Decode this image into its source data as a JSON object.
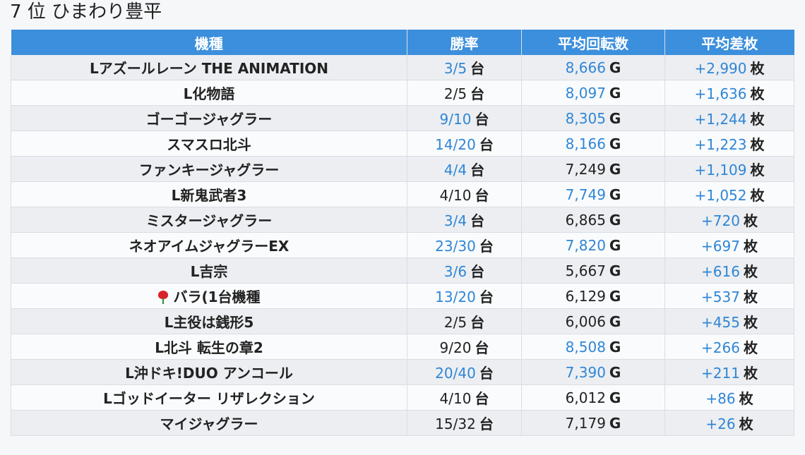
{
  "title": "7 位 ひまわり豊平",
  "headers": {
    "model": "機種",
    "win_rate": "勝率",
    "avg_spins": "平均回転数",
    "avg_diff": "平均差枚"
  },
  "units": {
    "dai": "台",
    "g": "G",
    "mai": "枚"
  },
  "colors": {
    "header_bg": "#3c8fdc",
    "highlight": "#2f86d6"
  },
  "rows": [
    {
      "model": "Lアズールレーン THE ANIMATION",
      "win": "3/5",
      "win_hl": true,
      "spins": "8,666",
      "spins_hl": true,
      "diff": "+2,990"
    },
    {
      "model": "L化物語",
      "win": "2/5",
      "win_hl": false,
      "spins": "8,097",
      "spins_hl": true,
      "diff": "+1,636"
    },
    {
      "model": "ゴーゴージャグラー",
      "win": "9/10",
      "win_hl": true,
      "spins": "8,305",
      "spins_hl": true,
      "diff": "+1,244"
    },
    {
      "model": "スマスロ北斗",
      "win": "14/20",
      "win_hl": true,
      "spins": "8,166",
      "spins_hl": true,
      "diff": "+1,223"
    },
    {
      "model": "ファンキージャグラー",
      "win": "4/4",
      "win_hl": true,
      "spins": "7,249",
      "spins_hl": false,
      "diff": "+1,109"
    },
    {
      "model": "L新鬼武者3",
      "win": "4/10",
      "win_hl": false,
      "spins": "7,749",
      "spins_hl": true,
      "diff": "+1,052"
    },
    {
      "model": "ミスタージャグラー",
      "win": "3/4",
      "win_hl": true,
      "spins": "6,865",
      "spins_hl": false,
      "diff": "+720"
    },
    {
      "model": "ネオアイムジャグラーEX",
      "win": "23/30",
      "win_hl": true,
      "spins": "7,820",
      "spins_hl": true,
      "diff": "+697"
    },
    {
      "model": "L吉宗",
      "win": "3/6",
      "win_hl": true,
      "spins": "5,667",
      "spins_hl": false,
      "diff": "+616"
    },
    {
      "model": "バラ(1台機種",
      "rose": true,
      "win": "13/20",
      "win_hl": true,
      "spins": "6,129",
      "spins_hl": false,
      "diff": "+537"
    },
    {
      "model": "L主役は銭形5",
      "win": "2/5",
      "win_hl": false,
      "spins": "6,006",
      "spins_hl": false,
      "diff": "+455"
    },
    {
      "model": "L北斗 転生の章2",
      "win": "9/20",
      "win_hl": false,
      "spins": "8,508",
      "spins_hl": true,
      "diff": "+266"
    },
    {
      "model": "L沖ドキ!DUO アンコール",
      "win": "20/40",
      "win_hl": true,
      "spins": "7,390",
      "spins_hl": true,
      "diff": "+211"
    },
    {
      "model": "Lゴッドイーター リザレクション",
      "win": "4/10",
      "win_hl": false,
      "spins": "6,012",
      "spins_hl": false,
      "diff": "+86"
    },
    {
      "model": "マイジャグラー",
      "win": "15/32",
      "win_hl": false,
      "spins": "7,179",
      "spins_hl": false,
      "diff": "+26"
    }
  ]
}
